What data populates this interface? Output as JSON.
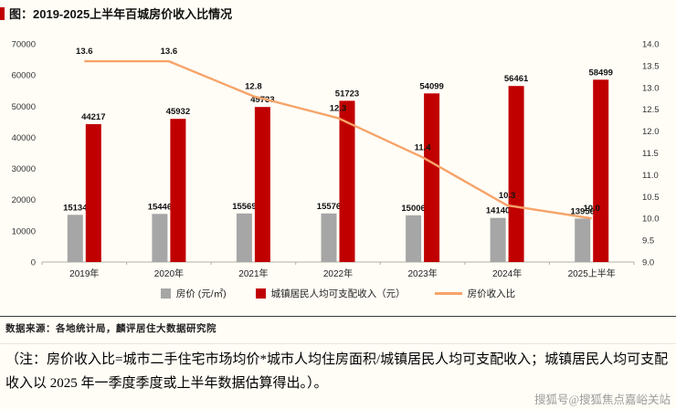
{
  "header": {
    "title": "图：2019-2025上半年百城房价收入比情况"
  },
  "chart_data": {
    "type": "bar",
    "title": "图：2019-2025上半年百城房价收入比情况",
    "categories": [
      "2019年",
      "2020年",
      "2021年",
      "2022年",
      "2023年",
      "2024年",
      "2025上半年"
    ],
    "series": [
      {
        "name": "房价 (元/㎡)",
        "type": "bar",
        "axis": "left",
        "color": "#a6a6a6",
        "values": [
          15134,
          15446,
          15569,
          15576,
          15006,
          14140,
          13956
        ]
      },
      {
        "name": "城镇居民人均可支配收入（元）",
        "type": "bar",
        "axis": "left",
        "color": "#c00000",
        "values": [
          44217,
          45932,
          49733,
          51723,
          54099,
          56461,
          58499
        ]
      },
      {
        "name": "房价收入比",
        "type": "line",
        "axis": "right",
        "color": "#f6a469",
        "values": [
          13.6,
          13.6,
          12.8,
          12.3,
          11.4,
          10.3,
          10.0
        ]
      }
    ],
    "left_axis": {
      "min": 0,
      "max": 70000,
      "step": 10000
    },
    "right_axis": {
      "min": 9.0,
      "max": 14.0,
      "step": 0.5
    },
    "grid": false,
    "legend_position": "bottom"
  },
  "footer": {
    "source": "数据来源：各地统计局，麟评居住大数据研究院",
    "note": "（注：房价收入比=城市二手住宅市场均价*城市人均住房面积/城镇居民人均可支配收入；城镇居民人均可支配收入以 2025 年一季度季度或上半年数据估算得出。）。",
    "watermark": "搜狐号@搜狐焦点嘉峪关站"
  }
}
